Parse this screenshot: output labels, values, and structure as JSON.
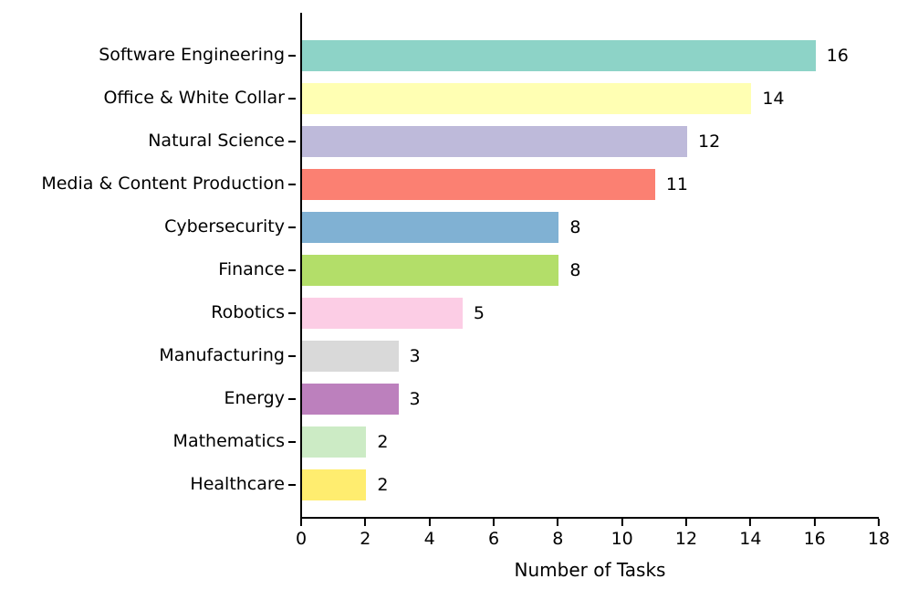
{
  "figure": {
    "background": "#ffffff",
    "text_color": "#000000",
    "axis_color": "#000000"
  },
  "chart_data": {
    "type": "bar",
    "orientation": "horizontal",
    "title": "",
    "xlabel": "Number of Tasks",
    "ylabel": "",
    "xlim": [
      0,
      18
    ],
    "xticks": [
      0,
      2,
      4,
      6,
      8,
      10,
      12,
      14,
      16,
      18
    ],
    "grid": false,
    "legend": false,
    "categories": [
      "Software Engineering",
      "Office & White Collar",
      "Natural Science",
      "Media & Content Production",
      "Cybersecurity",
      "Finance",
      "Robotics",
      "Manufacturing",
      "Energy",
      "Mathematics",
      "Healthcare"
    ],
    "values": [
      16,
      14,
      12,
      11,
      8,
      8,
      5,
      3,
      3,
      2,
      2
    ],
    "value_labels": [
      "16",
      "14",
      "12",
      "11",
      "8",
      "8",
      "5",
      "3",
      "3",
      "2",
      "2"
    ],
    "bar_colors": [
      "#8dd3c7",
      "#ffffb3",
      "#bebada",
      "#fb8072",
      "#80b1d3",
      "#b3de69",
      "#fccde5",
      "#d9d9d9",
      "#bc80bd",
      "#ccebc5",
      "#ffed6f"
    ]
  }
}
